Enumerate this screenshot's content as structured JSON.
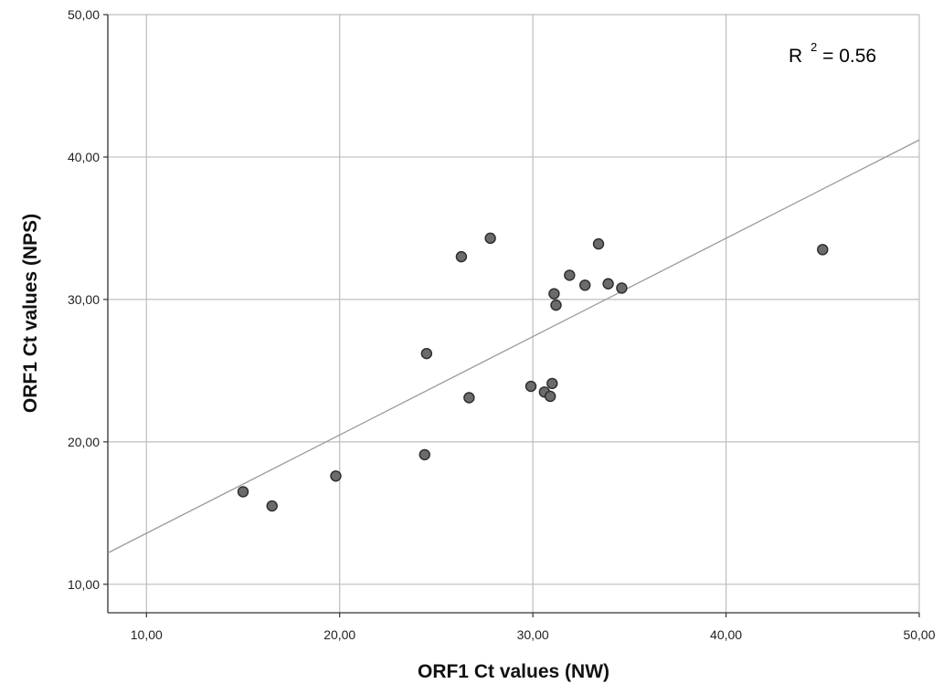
{
  "chart_data": {
    "type": "scatter",
    "title": "",
    "xlabel": "ORF1 Ct values (NW)",
    "ylabel": "ORF1 Ct values (NPS)",
    "xlim": [
      8.0,
      50.0
    ],
    "ylim": [
      8.0,
      50.0
    ],
    "x_ticks": [
      10,
      20,
      30,
      40,
      50
    ],
    "y_ticks": [
      10,
      20,
      30,
      40,
      50
    ],
    "x_tick_labels": [
      "10,00",
      "20,00",
      "30,00",
      "40,00",
      "50,00"
    ],
    "y_tick_labels": [
      "10,00",
      "20,00",
      "30,00",
      "40,00",
      "50,00"
    ],
    "grid": true,
    "points": [
      {
        "x": 15.0,
        "y": 16.5
      },
      {
        "x": 16.5,
        "y": 15.5
      },
      {
        "x": 19.8,
        "y": 17.6
      },
      {
        "x": 24.4,
        "y": 19.1
      },
      {
        "x": 24.5,
        "y": 26.2
      },
      {
        "x": 26.3,
        "y": 33.0
      },
      {
        "x": 26.7,
        "y": 23.1
      },
      {
        "x": 27.8,
        "y": 34.3
      },
      {
        "x": 29.9,
        "y": 23.9
      },
      {
        "x": 30.6,
        "y": 23.5
      },
      {
        "x": 30.9,
        "y": 23.2
      },
      {
        "x": 31.0,
        "y": 24.1
      },
      {
        "x": 31.1,
        "y": 30.4
      },
      {
        "x": 31.2,
        "y": 29.6
      },
      {
        "x": 31.9,
        "y": 31.7
      },
      {
        "x": 32.7,
        "y": 31.0
      },
      {
        "x": 33.4,
        "y": 33.9
      },
      {
        "x": 33.9,
        "y": 31.1
      },
      {
        "x": 34.6,
        "y": 30.8
      },
      {
        "x": 45.0,
        "y": 33.5
      }
    ],
    "fit_line": {
      "x": [
        8.0,
        50.0
      ],
      "y": [
        12.2,
        41.2
      ]
    },
    "annotation": {
      "base": "R",
      "superscript": "2",
      "rest": " = 0.56"
    },
    "colors": {
      "point_fill": "#6b6b6b",
      "point_stroke": "#2b2b2b",
      "grid": "#bdbdbd",
      "fit_line": "#9a9a9a",
      "axis": "#333333"
    }
  }
}
